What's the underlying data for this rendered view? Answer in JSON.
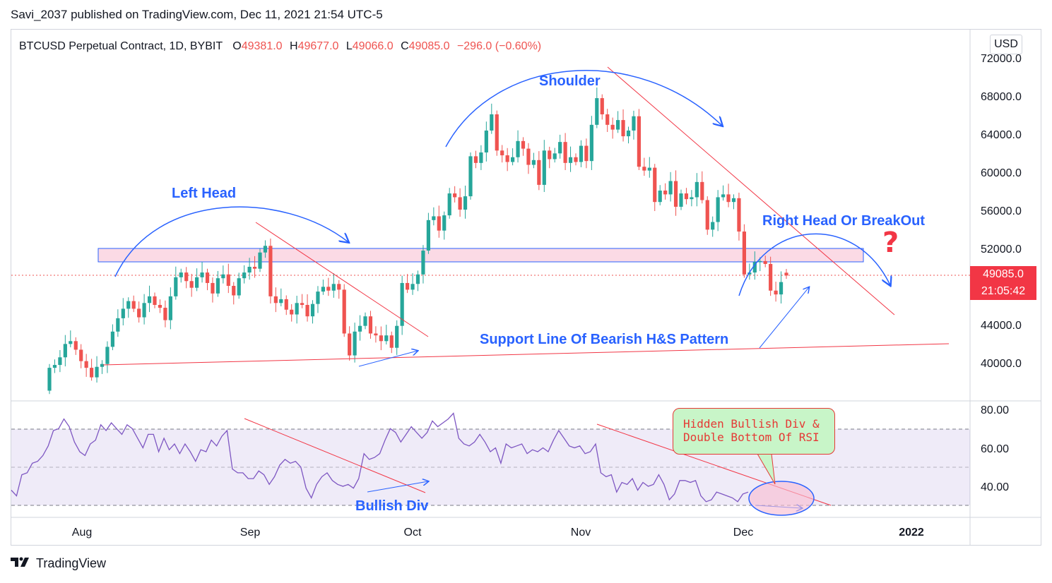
{
  "header": {
    "publisher_line": "Savi_2037 published on TradingView.com, Dec 11, 2021 21:54 UTC-5"
  },
  "legend": {
    "symbol": "BTCUSD Perpetual Contract, 1D, BYBIT",
    "open_label": "O",
    "open": "49381.0",
    "high_label": "H",
    "high": "49677.0",
    "low_label": "L",
    "low": "49066.0",
    "close_label": "C",
    "close": "49085.0",
    "change": "−296.0 (−0.60%)"
  },
  "currency": "USD",
  "price_tag": {
    "price": "49085.0",
    "countdown": "21:05:42"
  },
  "annotations": {
    "left_head": "Left Head",
    "shoulder": "Shoulder",
    "right_head": "Right Head Or BreakOut",
    "question": "?",
    "support": "Support Line Of Bearish H&S Pattern",
    "bullish_div": "Bullish Div",
    "hidden_div_line1": "Hidden Bullish Div &",
    "hidden_div_line2": "Double Bottom Of RSI"
  },
  "footer": {
    "brand": "TradingView"
  },
  "colors": {
    "up": "#26a69a",
    "down": "#ef5350",
    "annotation_blue": "#2962ff",
    "rsi_line": "#7e57c2",
    "trend_red": "#f23645"
  },
  "chart_data": [
    {
      "type": "candlestick",
      "title": "BTCUSD Perpetual Contract, 1D, BYBIT",
      "ylim": [
        37000,
        73500
      ],
      "y_ticks": [
        "72000.0",
        "68000.0",
        "64000.0",
        "60000.0",
        "56000.0",
        "52000.0",
        "44000.0",
        "40000.0"
      ],
      "x_ticks": [
        "Aug",
        "Sep",
        "Oct",
        "Nov",
        "Dec",
        "2022"
      ],
      "x_range": [
        "2021-07-20",
        "2022-01-10"
      ],
      "last_price": 49085.0,
      "close": [
        39400,
        39700,
        40500,
        41900,
        42200,
        41300,
        40100,
        39400,
        38400,
        39500,
        39800,
        41600,
        43200,
        44600,
        45600,
        46400,
        45600,
        44700,
        46200,
        46900,
        46000,
        45700,
        44400,
        46900,
        48900,
        49400,
        48500,
        47800,
        48900,
        49400,
        48300,
        47200,
        48800,
        49200,
        48000,
        47000,
        48800,
        49400,
        50000,
        49800,
        51500,
        52200,
        46900,
        46200,
        46600,
        45500,
        45000,
        46200,
        46000,
        44800,
        46100,
        47400,
        47900,
        47500,
        48200,
        47600,
        43000,
        40700,
        43200,
        43800,
        44800,
        43000,
        42800,
        42200,
        42800,
        41500,
        43800,
        48300,
        47600,
        48200,
        49200,
        51700,
        54900,
        55300,
        53800,
        55400,
        57700,
        57300,
        56000,
        57400,
        61600,
        60900,
        62000,
        64300,
        66000,
        62200,
        61700,
        61000,
        61500,
        63200,
        62400,
        60700,
        61200,
        58600,
        62200,
        61300,
        61900,
        63100,
        60900,
        61500,
        61000,
        62700,
        61100,
        64900,
        67700,
        66000,
        64900,
        64400,
        65400,
        63700,
        64300,
        65800,
        60500,
        60100,
        60400,
        56800,
        58000,
        57600,
        59000,
        56300,
        57700,
        57100,
        57300,
        58900,
        57000,
        53900,
        54700,
        57300,
        57600,
        56800,
        57200,
        53700,
        49200,
        49400,
        50500,
        50600,
        50300,
        47500,
        47100,
        48400,
        49085
      ],
      "open": [
        37000,
        39400,
        39700,
        40500,
        41900,
        42200,
        41300,
        40100,
        39400,
        38400,
        39500,
        39800,
        41600,
        43200,
        44600,
        45600,
        46400,
        45600,
        44700,
        46200,
        46900,
        46000,
        45700,
        44400,
        46900,
        48900,
        49400,
        48500,
        47800,
        48900,
        49400,
        48300,
        47200,
        48800,
        49200,
        48000,
        47000,
        48800,
        49400,
        50000,
        49800,
        51500,
        52200,
        46900,
        46200,
        46600,
        45500,
        45000,
        46200,
        46000,
        44800,
        46100,
        47400,
        47900,
        47500,
        48200,
        47600,
        43000,
        40700,
        43200,
        43800,
        44800,
        43000,
        42800,
        42200,
        42800,
        41500,
        43800,
        48300,
        47600,
        48200,
        49200,
        51700,
        54900,
        55300,
        53800,
        55400,
        57700,
        57300,
        56000,
        57400,
        61600,
        60900,
        62000,
        64300,
        66000,
        62200,
        61700,
        61000,
        61500,
        63200,
        62400,
        60700,
        61200,
        58600,
        62200,
        61300,
        61900,
        63100,
        60900,
        61500,
        61000,
        62700,
        61100,
        64900,
        67700,
        66000,
        64900,
        64400,
        65400,
        63700,
        64300,
        65800,
        60500,
        60100,
        60400,
        56800,
        58000,
        57600,
        59000,
        56300,
        57700,
        57100,
        57300,
        58900,
        57000,
        53900,
        54700,
        57300,
        57600,
        56800,
        57200,
        53700,
        49200,
        49400,
        50500,
        50600,
        50300,
        47500,
        47100,
        49381
      ],
      "horizontal_zone": [
        50500,
        51900
      ]
    },
    {
      "type": "line",
      "title": "RSI",
      "ylim": [
        25,
        83
      ],
      "y_ticks": [
        "80.00",
        "60.00",
        "40.00"
      ],
      "bands": [
        30,
        50,
        70
      ],
      "values": [
        38,
        35,
        46,
        47,
        52,
        53,
        56,
        61,
        69,
        70,
        75,
        71,
        63,
        58,
        56,
        62,
        64,
        72,
        69,
        73,
        70,
        67,
        72,
        70,
        65,
        60,
        67,
        67,
        58,
        65,
        59,
        62,
        57,
        62,
        58,
        53,
        59,
        58,
        64,
        61,
        66,
        69,
        49,
        47,
        47,
        44,
        44,
        48,
        46,
        41,
        45,
        51,
        54,
        52,
        53,
        50,
        39,
        34,
        41,
        45,
        47,
        43,
        41,
        40,
        41,
        39,
        44,
        57,
        54,
        55,
        57,
        64,
        70,
        68,
        63,
        67,
        71,
        68,
        65,
        68,
        74,
        71,
        73,
        75,
        78,
        65,
        62,
        61,
        63,
        67,
        63,
        58,
        60,
        52,
        62,
        60,
        61,
        62,
        57,
        59,
        58,
        60,
        58,
        64,
        69,
        65,
        61,
        60,
        61,
        57,
        58,
        62,
        47,
        45,
        46,
        37,
        42,
        41,
        44,
        38,
        42,
        40,
        41,
        46,
        41,
        33,
        36,
        43,
        43,
        42,
        43,
        35,
        32,
        33,
        37,
        36,
        35,
        34,
        32,
        36,
        37
      ]
    }
  ]
}
